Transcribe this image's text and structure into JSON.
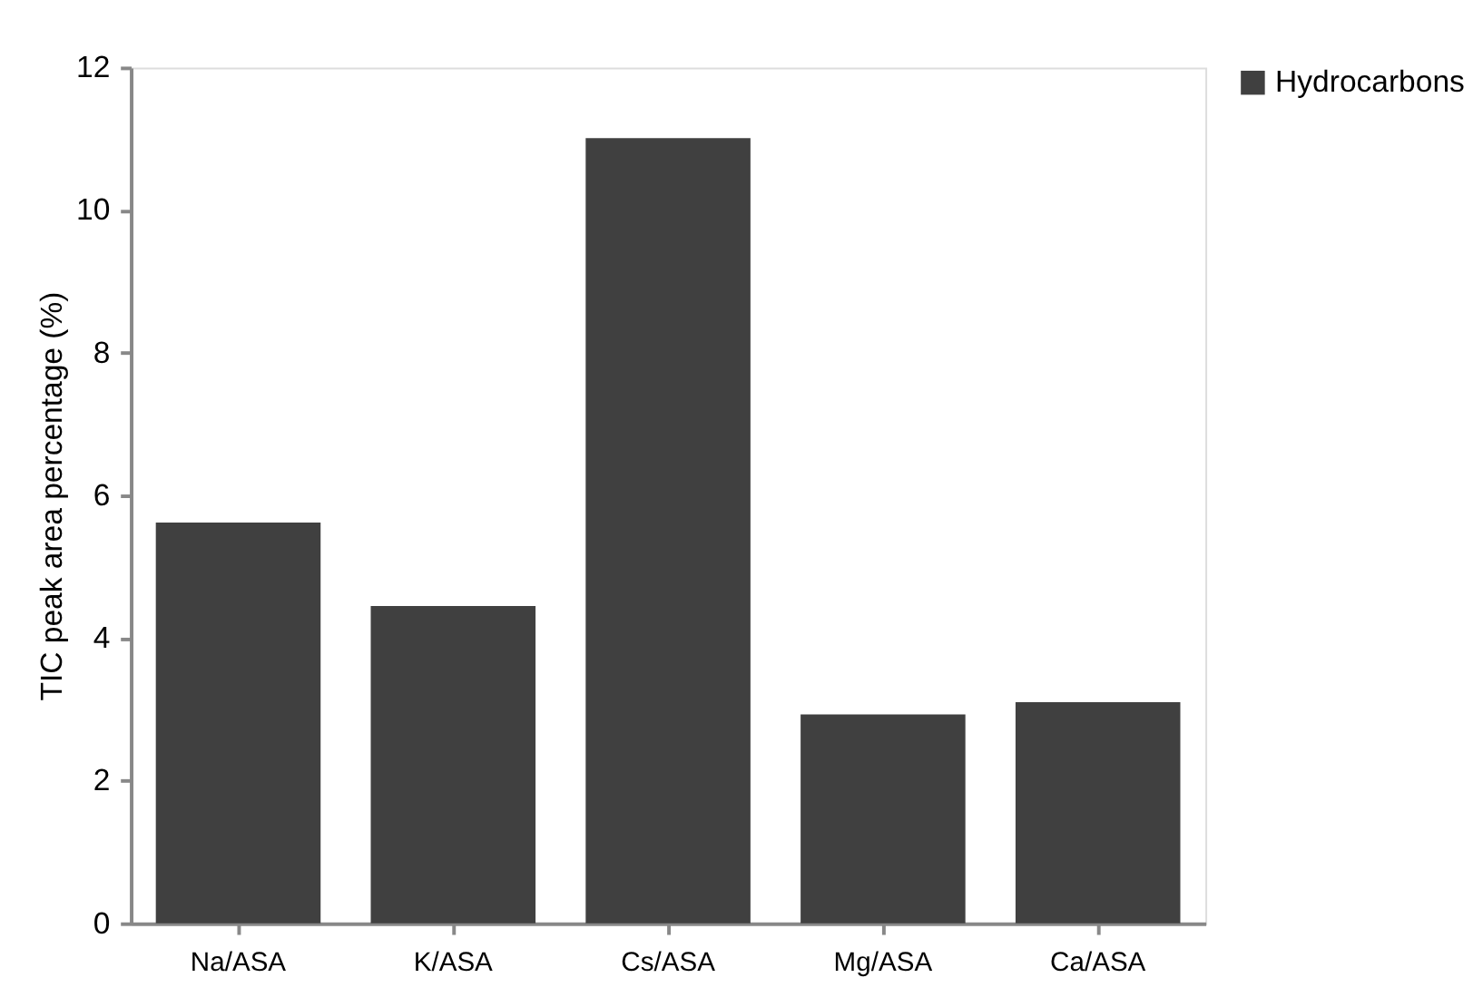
{
  "chart_data": {
    "type": "bar",
    "ylabel": "TIC peak area percentage (%)",
    "categories": [
      "Na/ASA",
      "K/ASA",
      "Cs/ASA",
      "Mg/ASA",
      "Ca/ASA"
    ],
    "series": [
      {
        "name": "Hydrocarbons",
        "color": "#404040",
        "values": [
          5.62,
          4.45,
          11.01,
          2.93,
          3.1
        ]
      }
    ],
    "ylim": [
      0,
      12
    ],
    "yticks": [
      0,
      2,
      4,
      6,
      8,
      10,
      12
    ],
    "grid": false,
    "legend": "right"
  }
}
